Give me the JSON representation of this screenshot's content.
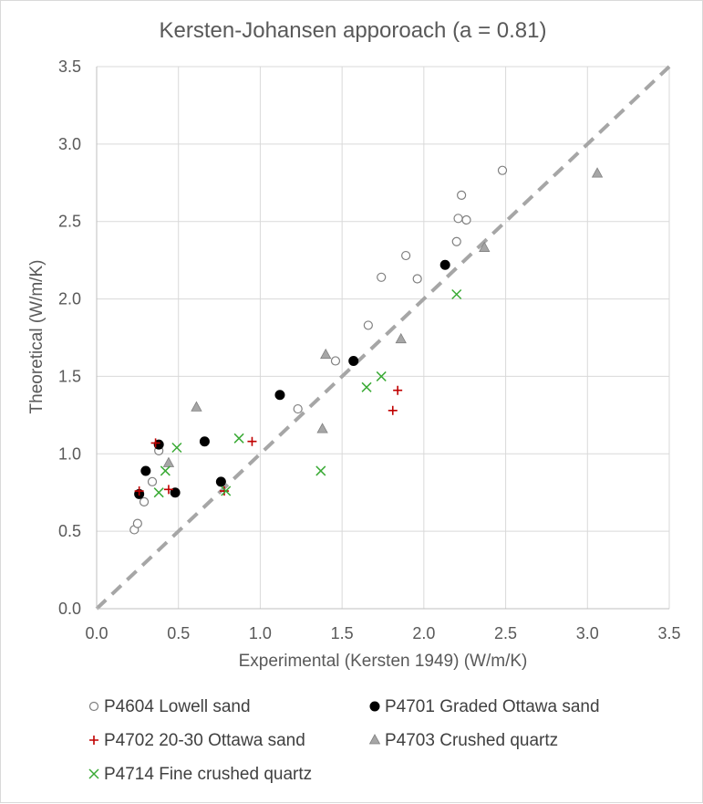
{
  "chart_data": {
    "type": "scatter",
    "title": "Kersten-Johansen apporoach (a = 0.81)",
    "xlabel": "Experimental (Kersten 1949) (W/m/K)",
    "ylabel": "Theoretical (W/m/K)",
    "xlim": [
      0,
      3.5
    ],
    "ylim": [
      0,
      3.5
    ],
    "xticks": [
      "0.0",
      "0.5",
      "1.0",
      "1.5",
      "2.0",
      "2.5",
      "3.0",
      "3.5"
    ],
    "yticks": [
      "0.0",
      "0.5",
      "1.0",
      "1.5",
      "2.0",
      "2.5",
      "3.0",
      "3.5"
    ],
    "grid": true,
    "reference_line": {
      "style": "dashed",
      "color": "#a6a6a6",
      "from": [
        0,
        0
      ],
      "to": [
        3.5,
        3.5
      ]
    },
    "legend_position": "bottom",
    "series": [
      {
        "name": "P4604 Lowell sand",
        "marker": "circle-open",
        "color": "#7f7f7f",
        "points": [
          [
            0.23,
            0.51
          ],
          [
            0.25,
            0.55
          ],
          [
            0.29,
            0.69
          ],
          [
            0.34,
            0.82
          ],
          [
            0.38,
            1.02
          ],
          [
            1.23,
            1.29
          ],
          [
            1.46,
            1.6
          ],
          [
            1.66,
            1.83
          ],
          [
            1.74,
            2.14
          ],
          [
            1.89,
            2.28
          ],
          [
            1.96,
            2.13
          ],
          [
            2.2,
            2.37
          ],
          [
            2.21,
            2.52
          ],
          [
            2.23,
            2.67
          ],
          [
            2.26,
            2.51
          ],
          [
            2.48,
            2.83
          ]
        ]
      },
      {
        "name": "P4701 Graded Ottawa sand",
        "marker": "circle-filled",
        "color": "#000000",
        "points": [
          [
            0.26,
            0.74
          ],
          [
            0.3,
            0.89
          ],
          [
            0.38,
            1.06
          ],
          [
            0.48,
            0.75
          ],
          [
            0.66,
            1.08
          ],
          [
            0.76,
            0.82
          ],
          [
            1.12,
            1.38
          ],
          [
            1.57,
            1.6
          ],
          [
            2.13,
            2.22
          ]
        ]
      },
      {
        "name": "P4702 20-30 Ottawa sand",
        "marker": "plus",
        "color": "#c00000",
        "points": [
          [
            0.26,
            0.76
          ],
          [
            0.36,
            1.07
          ],
          [
            0.44,
            0.77
          ],
          [
            0.78,
            0.76
          ],
          [
            0.95,
            1.08
          ],
          [
            1.81,
            1.28
          ],
          [
            1.84,
            1.41
          ]
        ]
      },
      {
        "name": "P4703 Crushed quartz",
        "marker": "triangle",
        "color": "#a6a6a6",
        "points": [
          [
            0.44,
            0.94
          ],
          [
            0.61,
            1.3
          ],
          [
            1.38,
            1.16
          ],
          [
            1.4,
            1.64
          ],
          [
            1.86,
            1.74
          ],
          [
            2.37,
            2.33
          ],
          [
            3.06,
            2.81
          ]
        ]
      },
      {
        "name": "P4714 Fine crushed quartz",
        "marker": "x",
        "color": "#3aaa35",
        "points": [
          [
            0.38,
            0.75
          ],
          [
            0.42,
            0.89
          ],
          [
            0.49,
            1.04
          ],
          [
            0.79,
            0.76
          ],
          [
            0.87,
            1.1
          ],
          [
            1.37,
            0.89
          ],
          [
            1.65,
            1.43
          ],
          [
            1.74,
            1.5
          ],
          [
            2.2,
            2.03
          ]
        ]
      }
    ]
  }
}
